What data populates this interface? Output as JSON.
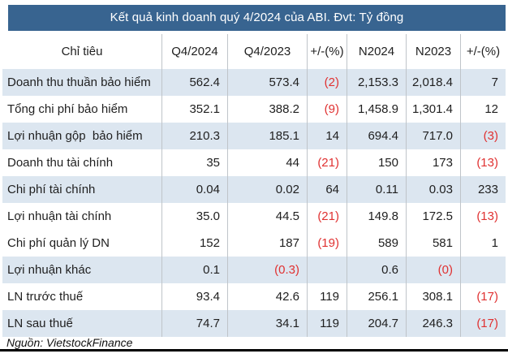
{
  "title_bar": {
    "text": "Kết quả kinh doanh quý 4/2024 của ABI. Đvt: Tỷ đồng"
  },
  "footer": {
    "source": "Nguồn: VietstockFinance"
  },
  "colors": {
    "title_bg": "#386490",
    "row_stripe": "#dce6f0",
    "negative_red": "#e03131",
    "text": "#1f1f1f",
    "grid_border": "#bfc4c9"
  },
  "table": {
    "columns": [
      "Chỉ tiêu",
      "Q4/2024",
      "Q4/2023",
      "+/-(%)",
      "N2024",
      "N2023",
      "+/-(%)"
    ],
    "rows": [
      {
        "label": "Doanh thu thuần bảo hiểm",
        "striped": true,
        "cells": [
          {
            "v": "562.4"
          },
          {
            "v": "573.4"
          },
          {
            "v": "(2)",
            "neg": true
          },
          {
            "v": "2,153.3"
          },
          {
            "v": "2,018.4"
          },
          {
            "v": "7"
          }
        ]
      },
      {
        "label": "Tổng chi phí bảo hiểm",
        "striped": false,
        "cells": [
          {
            "v": "352.1"
          },
          {
            "v": "388.2"
          },
          {
            "v": "(9)",
            "neg": true
          },
          {
            "v": "1,458.9"
          },
          {
            "v": "1,301.4"
          },
          {
            "v": "12"
          }
        ]
      },
      {
        "label": "Lợi nhuận gộp  bảo hiểm",
        "striped": true,
        "cells": [
          {
            "v": "210.3"
          },
          {
            "v": "185.1"
          },
          {
            "v": "14"
          },
          {
            "v": "694.4"
          },
          {
            "v": "717.0"
          },
          {
            "v": "(3)",
            "neg": true
          }
        ]
      },
      {
        "label": "Doanh thu tài chính",
        "striped": false,
        "cells": [
          {
            "v": "35"
          },
          {
            "v": "44"
          },
          {
            "v": "(21)",
            "neg": true
          },
          {
            "v": "150"
          },
          {
            "v": "173"
          },
          {
            "v": "(13)",
            "neg": true
          }
        ]
      },
      {
        "label": "Chi phí tài chính",
        "striped": true,
        "cells": [
          {
            "v": "0.04"
          },
          {
            "v": "0.02"
          },
          {
            "v": "64"
          },
          {
            "v": "0.11"
          },
          {
            "v": "0.03"
          },
          {
            "v": "233"
          }
        ]
      },
      {
        "label": "Lợi nhuận tài chính",
        "striped": false,
        "cells": [
          {
            "v": "35.0"
          },
          {
            "v": "44.5"
          },
          {
            "v": "(21)",
            "neg": true
          },
          {
            "v": "149.8"
          },
          {
            "v": "172.5"
          },
          {
            "v": "(13)",
            "neg": true
          }
        ]
      },
      {
        "label": "Chi phí quản lý DN",
        "striped": false,
        "cells": [
          {
            "v": "152"
          },
          {
            "v": "187"
          },
          {
            "v": "(19)",
            "neg": true
          },
          {
            "v": "589"
          },
          {
            "v": "581"
          },
          {
            "v": "1"
          }
        ]
      },
      {
        "label": "Lợi nhuận khác",
        "striped": true,
        "cells": [
          {
            "v": "0.1"
          },
          {
            "v": "(0.3)",
            "neg": true
          },
          {
            "v": ""
          },
          {
            "v": "0.6"
          },
          {
            "v": "(0)",
            "neg": true
          },
          {
            "v": ""
          }
        ]
      },
      {
        "label": "LN trước thuế",
        "striped": false,
        "cells": [
          {
            "v": "93.4"
          },
          {
            "v": "42.6"
          },
          {
            "v": "119"
          },
          {
            "v": "256.1"
          },
          {
            "v": "308.1"
          },
          {
            "v": "(17)",
            "neg": true
          }
        ]
      },
      {
        "label": "LN sau thuế",
        "striped": true,
        "cells": [
          {
            "v": "74.7"
          },
          {
            "v": "34.1"
          },
          {
            "v": "119"
          },
          {
            "v": "204.7"
          },
          {
            "v": "246.3"
          },
          {
            "v": "(17)",
            "neg": true
          }
        ]
      }
    ]
  },
  "chart_data": {
    "type": "table",
    "title": "Kết quả kinh doanh quý 4/2024 của ABI. Đvt: Tỷ đồng",
    "unit": "Tỷ đồng",
    "source": "Nguồn: VietstockFinance",
    "columns": [
      "Chỉ tiêu",
      "Q4/2024",
      "Q4/2023",
      "+/-(%)",
      "N2024",
      "N2023",
      "+/-(%)"
    ],
    "rows": [
      [
        "Doanh thu thuần bảo hiểm",
        562.4,
        573.4,
        -2,
        2153.3,
        2018.4,
        7
      ],
      [
        "Tổng chi phí bảo hiểm",
        352.1,
        388.2,
        -9,
        1458.9,
        1301.4,
        12
      ],
      [
        "Lợi nhuận gộp bảo hiểm",
        210.3,
        185.1,
        14,
        694.4,
        717.0,
        -3
      ],
      [
        "Doanh thu tài chính",
        35,
        44,
        -21,
        150,
        173,
        -13
      ],
      [
        "Chi phí tài chính",
        0.04,
        0.02,
        64,
        0.11,
        0.03,
        233
      ],
      [
        "Lợi nhuận tài chính",
        35.0,
        44.5,
        -21,
        149.8,
        172.5,
        -13
      ],
      [
        "Chi phí quản lý DN",
        152,
        187,
        -19,
        589,
        581,
        1
      ],
      [
        "Lợi nhuận khác",
        0.1,
        -0.3,
        null,
        0.6,
        0,
        null
      ],
      [
        "LN trước thuế",
        93.4,
        42.6,
        119,
        256.1,
        308.1,
        -17
      ],
      [
        "LN sau thuế",
        74.7,
        34.1,
        119,
        204.7,
        246.3,
        -17
      ]
    ]
  }
}
